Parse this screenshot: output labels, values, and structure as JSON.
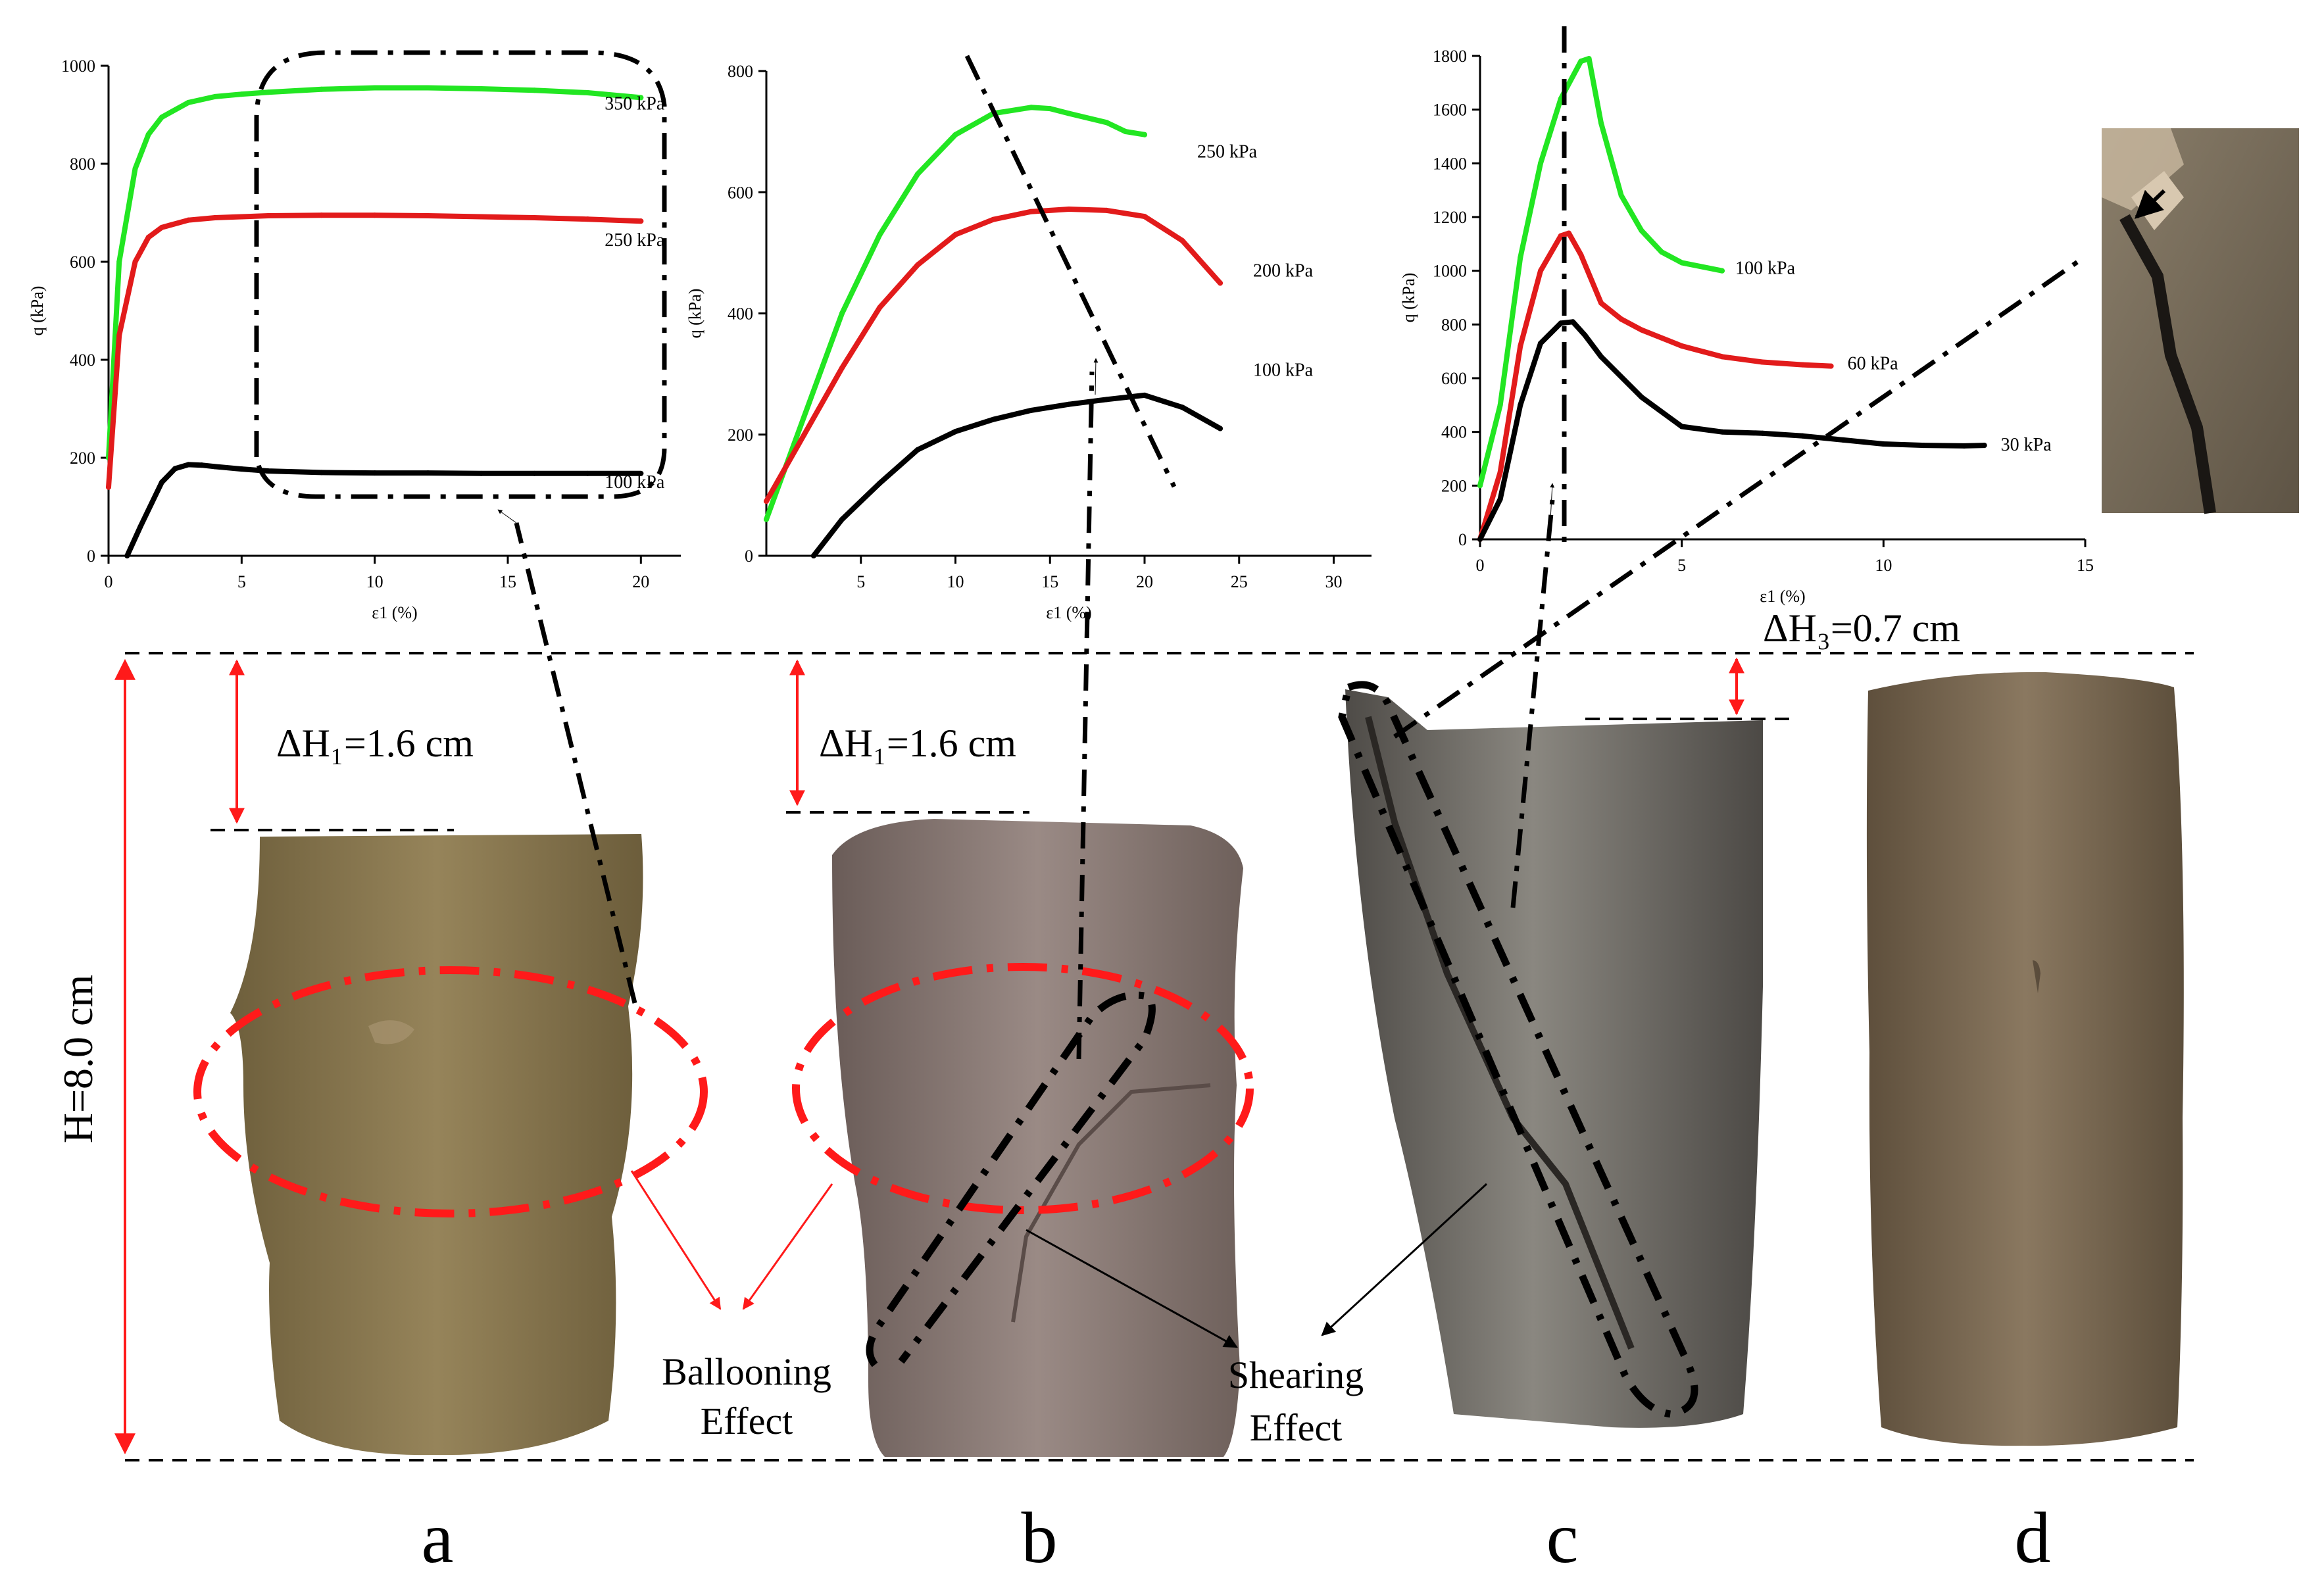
{
  "colors": {
    "green": "#22e622",
    "red": "#e21b1b",
    "black": "#000000",
    "annotation_red": "#ff1a1a",
    "sample_a": "#8c7a52",
    "sample_b": "#8a7a78",
    "sample_c": "#6e6b66",
    "sample_d": "#7d6b55"
  },
  "chart_data": [
    {
      "id": "a",
      "type": "line",
      "xlabel": "ε1 (%)",
      "ylabel": "q (kPa)",
      "xlim": [
        0,
        21.5
      ],
      "ylim": [
        0,
        1000
      ],
      "xticks": [
        0,
        5,
        10,
        15,
        20
      ],
      "yticks": [
        0,
        200,
        400,
        600,
        800,
        1000
      ],
      "series": [
        {
          "name": "350 kPa",
          "color": "green",
          "x": [
            0,
            0.4,
            1,
            1.5,
            2,
            3,
            4,
            5,
            6,
            8,
            10,
            12,
            14,
            16,
            18,
            20
          ],
          "y": [
            200,
            600,
            790,
            860,
            895,
            925,
            937,
            942,
            946,
            952,
            955,
            955,
            953,
            950,
            945,
            935
          ]
        },
        {
          "name": "250 kPa",
          "color": "red",
          "x": [
            0,
            0.4,
            1,
            1.5,
            2,
            3,
            4,
            5,
            6,
            8,
            10,
            12,
            14,
            16,
            18,
            20
          ],
          "y": [
            140,
            450,
            600,
            650,
            670,
            685,
            690,
            692,
            694,
            695,
            695,
            694,
            692,
            690,
            687,
            683
          ]
        },
        {
          "name": "100 kPa",
          "color": "black",
          "x": [
            0.7,
            1.2,
            2,
            2.5,
            3,
            3.5,
            4,
            5,
            6,
            8,
            10,
            12,
            14,
            16,
            18,
            20
          ],
          "y": [
            0,
            60,
            150,
            178,
            186,
            185,
            182,
            177,
            173,
            170,
            169,
            169,
            168,
            168,
            168,
            168
          ]
        }
      ]
    },
    {
      "id": "b",
      "type": "line",
      "xlabel": "ε1 (%)",
      "ylabel": "q (kPa)",
      "xlim": [
        0,
        32
      ],
      "ylim": [
        0,
        800
      ],
      "xticks": [
        5,
        10,
        15,
        20,
        25,
        30
      ],
      "yticks": [
        0,
        200,
        400,
        600,
        800
      ],
      "series": [
        {
          "name": "250 kPa",
          "color": "green",
          "x": [
            0,
            2,
            4,
            6,
            8,
            10,
            12,
            14,
            15,
            16,
            18,
            19,
            20
          ],
          "y": [
            60,
            230,
            400,
            530,
            630,
            695,
            730,
            740,
            738,
            730,
            715,
            700,
            695
          ]
        },
        {
          "name": "200 kPa",
          "color": "red",
          "x": [
            0,
            2,
            4,
            6,
            8,
            10,
            12,
            14,
            16,
            18,
            20,
            22,
            24
          ],
          "y": [
            90,
            200,
            310,
            410,
            480,
            530,
            555,
            568,
            572,
            570,
            560,
            520,
            450
          ]
        },
        {
          "name": "100 kPa",
          "color": "black",
          "x": [
            2.5,
            4,
            6,
            8,
            10,
            12,
            14,
            16,
            18,
            20,
            22,
            24
          ],
          "y": [
            0,
            60,
            120,
            175,
            205,
            225,
            240,
            250,
            258,
            265,
            245,
            210
          ]
        }
      ]
    },
    {
      "id": "c",
      "type": "line",
      "xlabel": "ε1 (%)",
      "ylabel": "q (kPa)",
      "xlim": [
        0,
        15
      ],
      "ylim": [
        0,
        1800
      ],
      "xticks": [
        0,
        5,
        10,
        15
      ],
      "yticks": [
        0,
        200,
        400,
        600,
        800,
        1000,
        1200,
        1400,
        1600,
        1800
      ],
      "series": [
        {
          "name": "100 kPa",
          "color": "green",
          "x": [
            0,
            0.5,
            1,
            1.5,
            2,
            2.5,
            2.7,
            3,
            3.5,
            4,
            4.5,
            5,
            6
          ],
          "y": [
            200,
            500,
            1050,
            1400,
            1640,
            1780,
            1790,
            1550,
            1280,
            1150,
            1070,
            1030,
            1000
          ]
        },
        {
          "name": "60 kPa",
          "color": "red",
          "x": [
            0,
            0.5,
            1,
            1.5,
            2,
            2.2,
            2.5,
            3,
            3.5,
            4,
            5,
            6,
            7,
            8,
            8.7
          ],
          "y": [
            0,
            250,
            720,
            1000,
            1130,
            1140,
            1060,
            880,
            820,
            780,
            720,
            680,
            660,
            650,
            645
          ]
        },
        {
          "name": "30 kPa",
          "color": "black",
          "x": [
            0,
            0.5,
            1,
            1.5,
            2,
            2.3,
            2.6,
            3,
            4,
            5,
            6,
            7,
            8,
            9,
            10,
            11,
            12,
            12.5
          ],
          "y": [
            0,
            150,
            500,
            730,
            805,
            810,
            760,
            680,
            530,
            420,
            400,
            395,
            385,
            370,
            355,
            350,
            348,
            350
          ]
        }
      ]
    }
  ],
  "annotations": {
    "dh1_a": "ΔH₁=1.6 cm",
    "dh1_b": "ΔH₁=1.6 cm",
    "dh3": "ΔH₃=0.7 cm",
    "height": "H=8.0 cm",
    "ballooning_l1": "Ballooning",
    "ballooning_l2": "Effect",
    "shearing_l1": "Shearing",
    "shearing_l2": "Effect"
  },
  "panel_labels": [
    "a",
    "b",
    "c",
    "d"
  ]
}
